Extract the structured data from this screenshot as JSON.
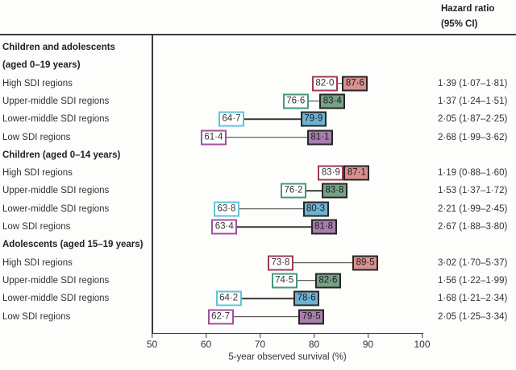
{
  "header": {
    "line1": "Hazard ratio",
    "line2": "(95% CI)"
  },
  "chart_data": {
    "type": "paired-box dumbbell (change in survival by period)",
    "xlabel": "5-year observed survival (%)",
    "xlim": [
      50,
      100
    ],
    "x_ticks": [
      50,
      60,
      70,
      80,
      90,
      100
    ],
    "value_column_header": "Hazard ratio (95% CI)",
    "colors": {
      "high": {
        "outline": "#a03a55",
        "fill": "#d9908f"
      },
      "upper": {
        "outline": "#419b77",
        "fill": "#75a287"
      },
      "lower": {
        "outline": "#5ec4da",
        "fill": "#6db2d3"
      },
      "low": {
        "outline": "#a3519d",
        "fill": "#a77fad"
      }
    },
    "box_border_dark": "#262626",
    "line_color": "#3a3a3a",
    "groups": [
      {
        "title_lines": [
          "Children and adolescents",
          "(aged 0–19 years)"
        ],
        "rows": [
          {
            "label": "High SDI regions",
            "color": "high",
            "start": 82.0,
            "end": 87.6,
            "start_text": "82·0",
            "end_text": "87·6",
            "hazard_ratio": "1·39 (1·07–1·81)"
          },
          {
            "label": "Upper-middle SDI regions",
            "color": "upper",
            "start": 76.6,
            "end": 83.4,
            "start_text": "76·6",
            "end_text": "83·4",
            "hazard_ratio": "1·37 (1·24–1·51)"
          },
          {
            "label": "Lower-middle SDI regions",
            "color": "lower",
            "start": 64.7,
            "end": 79.9,
            "start_text": "64·7",
            "end_text": "79·9",
            "hazard_ratio": "2·05 (1·87–2·25)"
          },
          {
            "label": "Low SDI regions",
            "color": "low",
            "start": 61.4,
            "end": 81.1,
            "start_text": "61·4",
            "end_text": "81·1",
            "hazard_ratio": "2·68 (1·99–3·62)"
          }
        ]
      },
      {
        "title_lines": [
          "Children (aged 0–14 years)"
        ],
        "rows": [
          {
            "label": "High SDI regions",
            "color": "high",
            "start": 83.9,
            "end": 87.1,
            "start_text": "83·9",
            "end_text": "87·1",
            "hazard_ratio": "1·19 (0·88–1·60)"
          },
          {
            "label": "Upper-middle SDI regions",
            "color": "upper",
            "start": 76.2,
            "end": 83.8,
            "start_text": "76·2",
            "end_text": "83·8",
            "hazard_ratio": "1·53 (1·37–1·72)"
          },
          {
            "label": "Lower-middle SDI regions",
            "color": "lower",
            "start": 63.8,
            "end": 80.3,
            "start_text": "63·8",
            "end_text": "80·3",
            "hazard_ratio": "2·21 (1·99–2·45)"
          },
          {
            "label": "Low SDI regions",
            "color": "low",
            "start": 63.4,
            "end": 81.8,
            "start_text": "63·4",
            "end_text": "81·8",
            "hazard_ratio": "2·67 (1·88–3·80)"
          }
        ]
      },
      {
        "title_lines": [
          "Adolescents (aged 15–19 years)"
        ],
        "rows": [
          {
            "label": "High SDI regions",
            "color": "high",
            "start": 73.8,
            "end": 89.5,
            "start_text": "73·8",
            "end_text": "89·5",
            "hazard_ratio": "3·02 (1·70–5·37)"
          },
          {
            "label": "Upper-middle SDI regions",
            "color": "upper",
            "start": 74.5,
            "end": 82.6,
            "start_text": "74·5",
            "end_text": "82·6",
            "hazard_ratio": "1·56 (1·22–1·99)"
          },
          {
            "label": "Lower-middle SDI regions",
            "color": "lower",
            "start": 64.2,
            "end": 78.6,
            "start_text": "64·2",
            "end_text": "78·6",
            "hazard_ratio": "1·68 (1·21–2·34)"
          },
          {
            "label": "Low SDI regions",
            "color": "low",
            "start": 62.7,
            "end": 79.5,
            "start_text": "62·7",
            "end_text": "79·5",
            "hazard_ratio": "2·05 (1·25–3·34)"
          }
        ]
      }
    ]
  }
}
